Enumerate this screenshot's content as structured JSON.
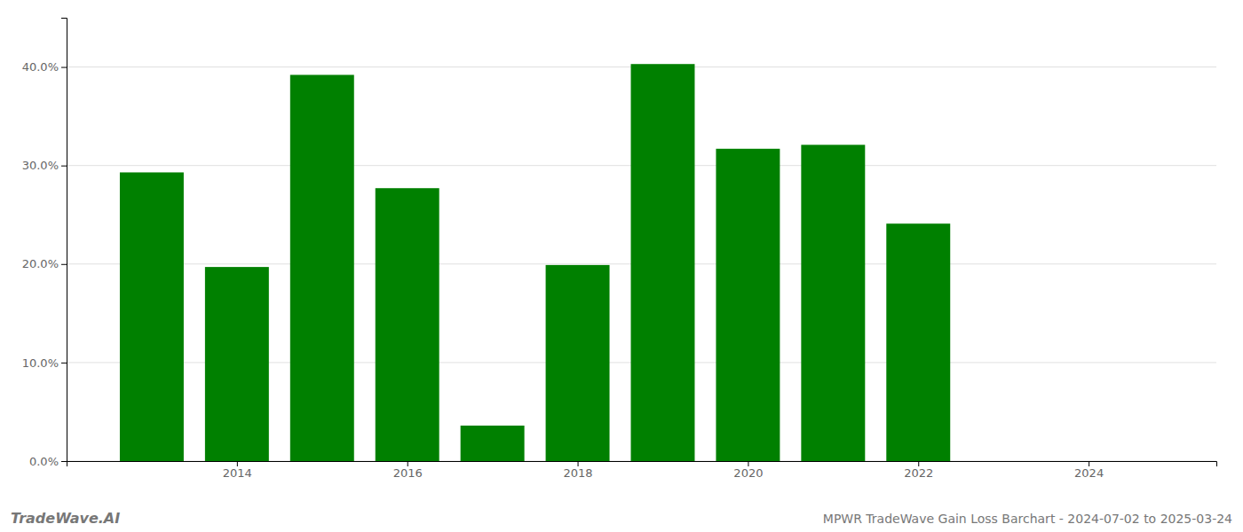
{
  "chart_data": {
    "type": "bar",
    "x": [
      2013,
      2014,
      2015,
      2016,
      2017,
      2018,
      2019,
      2020,
      2021,
      2022
    ],
    "values": [
      0.293,
      0.197,
      0.392,
      0.277,
      0.036,
      0.199,
      0.403,
      0.317,
      0.321,
      0.241
    ],
    "color": "#008000",
    "xlim": [
      2012.0,
      2025.5
    ],
    "xticks": [
      2014,
      2016,
      2018,
      2020,
      2022,
      2024
    ],
    "ylim": [
      0.0,
      0.45
    ],
    "yticks": [
      {
        "value": 0.0,
        "label": "0.0%"
      },
      {
        "value": 0.1,
        "label": "10.0%"
      },
      {
        "value": 0.2,
        "label": "20.0%"
      },
      {
        "value": 0.3,
        "label": "30.0%"
      },
      {
        "value": 0.4,
        "label": "40.0%"
      }
    ],
    "grid": true,
    "annotations": [
      "TradeWave.AI",
      "MPWR TradeWave Gain Loss Barchart - 2024-07-02 to 2025-03-24"
    ]
  }
}
